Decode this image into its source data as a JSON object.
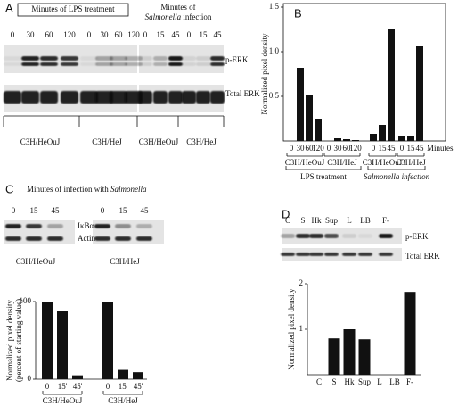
{
  "panels": {
    "a": {
      "label": "A",
      "lps_title": "Minutes of LPS treatment",
      "sal_title_1": "Minutes of",
      "sal_organism": "Salmonella",
      "sal_title_2": "infection",
      "lps_lanes": [
        0,
        30,
        60,
        120,
        0,
        30,
        60,
        120
      ],
      "sal_lanes": [
        0,
        15,
        45,
        0,
        15,
        45
      ],
      "rows": [
        "p-ERK",
        "Total ERK"
      ],
      "strains": [
        "C3H/HeOuJ",
        "C3H/HeJ",
        "C3H/HeOuJ",
        "C3H/HeJ"
      ]
    },
    "b": {
      "label": "B"
    },
    "c": {
      "label": "C",
      "title": "Minutes of infection with",
      "organism": "Salmonella",
      "lanes": [
        0,
        15,
        45,
        0,
        15,
        45
      ],
      "rows": [
        "IκBα",
        "Actin"
      ],
      "strains": [
        "C3H/HeOuJ",
        "C3H/HeJ"
      ]
    },
    "d": {
      "label": "D",
      "lanes": [
        "C",
        "S",
        "Hk",
        "Sup",
        "L",
        "LB",
        "F-"
      ],
      "rows": [
        "p-ERK",
        "Total ERK"
      ]
    }
  },
  "chart_data": [
    {
      "type": "bar",
      "ylabel": "Normalized pixel density",
      "xlabel": "Minutes",
      "color": "#111111",
      "ylim": [
        0,
        1.5
      ],
      "yticks": [
        0.5,
        {
          "value": 1,
          "label": "1.0"
        },
        1.5
      ],
      "treatments": [
        {
          "name": "LPS treatment",
          "groups": [
            {
              "name": "C3H/HeOuJ",
              "categories": [
                "0",
                "30",
                "60",
                "120"
              ],
              "values": [
                0,
                0.82,
                0.52,
                0.25
              ]
            },
            {
              "name": "C3H/HeJ",
              "categories": [
                "0",
                "30",
                "60",
                "120"
              ],
              "values": [
                0,
                0.03,
                0.02,
                0.01
              ]
            }
          ]
        },
        {
          "name": "Salmonella infection",
          "groups": [
            {
              "name": "C3H/HeOuJ",
              "categories": [
                "0",
                "15",
                "45"
              ],
              "values": [
                0.08,
                0.18,
                1.25
              ]
            },
            {
              "name": "C3H/HeJ",
              "categories": [
                "0",
                "15",
                "45"
              ],
              "values": [
                0.06,
                0.06,
                1.07
              ]
            }
          ]
        }
      ]
    },
    {
      "type": "bar",
      "ylabel": [
        "Normalized pixel density",
        "(percent of starting value)"
      ],
      "color": "#111111",
      "ylim": [
        0,
        100
      ],
      "yticks": [
        0,
        100
      ],
      "groups": [
        {
          "name": "C3H/HeOuJ",
          "categories": [
            "0",
            "15'",
            "45'"
          ],
          "values": [
            100,
            88,
            5
          ]
        },
        {
          "name": "C3H/HeJ",
          "categories": [
            "0",
            "15'",
            "45'"
          ],
          "values": [
            100,
            12,
            9
          ]
        }
      ]
    },
    {
      "type": "bar",
      "ylabel": "Normalized pixel density",
      "color": "#111111",
      "ylim": [
        0,
        2
      ],
      "yticks": [
        1,
        2
      ],
      "categories": [
        "C",
        "S",
        "Hk",
        "Sup",
        "L",
        "LB",
        "F-"
      ],
      "values": [
        0,
        0.8,
        1.0,
        0.78,
        0,
        0,
        1.82
      ]
    }
  ]
}
